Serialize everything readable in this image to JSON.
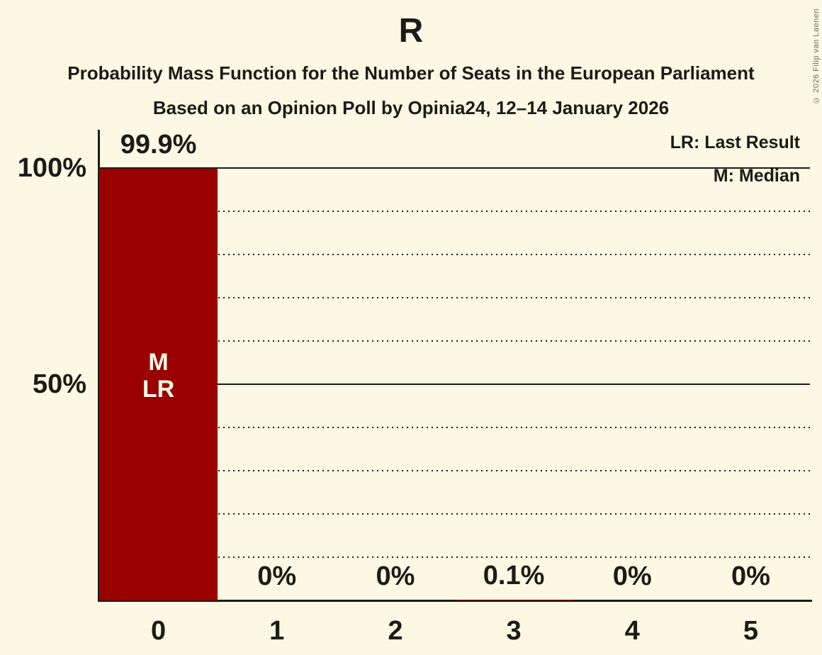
{
  "page": {
    "background": "#FCF8E3",
    "text_color": "#1C1B17",
    "copyright": "© 2026 Filip van Laenen"
  },
  "chart_data": {
    "type": "bar",
    "title": "R",
    "subtitle": "Probability Mass Function for the Number of Seats in the European Parliament",
    "poll_line": "Based on an Opinion Poll by Opinia24, 12–14 January 2026",
    "xlabel": "",
    "ylabel": "",
    "categories": [
      "0",
      "1",
      "2",
      "3",
      "4",
      "5"
    ],
    "values": [
      99.9,
      0,
      0,
      0.1,
      0,
      0
    ],
    "value_labels": [
      "99.9%",
      "0%",
      "0%",
      "0.1%",
      "0%",
      "0%"
    ],
    "bar_annotations": [
      [
        "M",
        "LR"
      ],
      [],
      [],
      [],
      [],
      []
    ],
    "bar_color": "#9B0000",
    "bar_annotation_color": "#FCF8E3",
    "ylim": [
      0,
      100
    ],
    "yticks": [
      {
        "value": 100,
        "label": "100%"
      },
      {
        "value": 50,
        "label": "50%"
      }
    ],
    "solid_gridlines": [
      100,
      50
    ],
    "dotted_gridlines": [
      90,
      80,
      70,
      60,
      40,
      30,
      20,
      10
    ],
    "grid_on": true,
    "legend_position": "top-right",
    "legend": [
      {
        "label": "LR: Last Result"
      },
      {
        "label": "M: Median"
      }
    ]
  }
}
